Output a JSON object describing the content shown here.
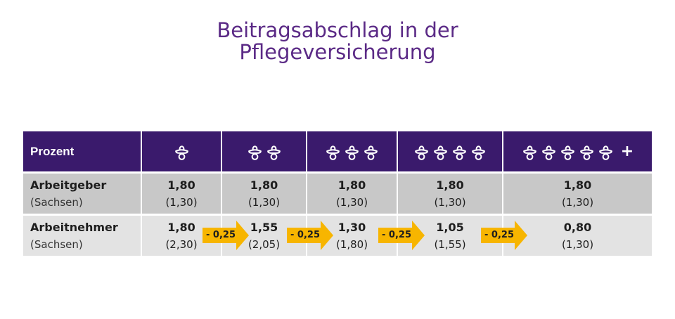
{
  "title": {
    "line1": "Beitragsabschlag in der",
    "line2": "Pflegeversicherung"
  },
  "header": {
    "label": "Prozent",
    "columns": [
      {
        "icon": "pacifier-icon",
        "count": 1
      },
      {
        "icon": "pacifier-icon",
        "count": 2
      },
      {
        "icon": "pacifier-icon",
        "count": 3
      },
      {
        "icon": "pacifier-icon",
        "count": 4
      },
      {
        "icon": "pacifier-icon",
        "count": 5,
        "plus": "+"
      }
    ]
  },
  "rows": [
    {
      "label": "Arbeitgeber",
      "sublabel": "(Sachsen)",
      "values": [
        {
          "value": "1,80",
          "sachsen": "(1,30)"
        },
        {
          "value": "1,80",
          "sachsen": "(1,30)"
        },
        {
          "value": "1,80",
          "sachsen": "(1,30)"
        },
        {
          "value": "1,80",
          "sachsen": "(1,30)"
        },
        {
          "value": "1,80",
          "sachsen": "(1,30)"
        }
      ]
    },
    {
      "label": "Arbeitnehmer",
      "sublabel": "(Sachsen)",
      "values": [
        {
          "value": "1,80",
          "sachsen": "(2,30)"
        },
        {
          "value": "1,55",
          "sachsen": "(2,05)"
        },
        {
          "value": "1,30",
          "sachsen": "(1,80)"
        },
        {
          "value": "1,05",
          "sachsen": "(1,55)"
        },
        {
          "value": "0,80",
          "sachsen": "(1,30)"
        }
      ]
    }
  ],
  "reductions": [
    "- 0,25",
    "- 0,25",
    "- 0,25",
    "- 0,25"
  ],
  "colors": {
    "title": "#5b2a86",
    "header_bg": "#3a1a6c",
    "row1_bg": "#c8c8c8",
    "row2_bg": "#e3e3e3",
    "arrow": "#f7b500"
  }
}
